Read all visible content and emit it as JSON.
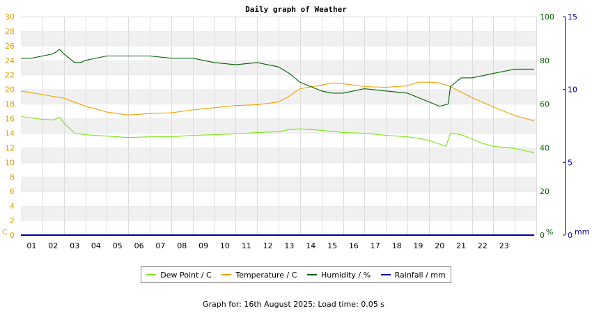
{
  "chart_data": {
    "type": "line",
    "title": "Daily graph of Weather",
    "x_ticks": [
      "01",
      "02",
      "03",
      "04",
      "05",
      "06",
      "07",
      "08",
      "09",
      "10",
      "11",
      "12",
      "13",
      "14",
      "15",
      "16",
      "17",
      "18",
      "19",
      "20",
      "21",
      "22",
      "23"
    ],
    "xlim": [
      0,
      24
    ],
    "y_left": {
      "unit_label": "C",
      "ylim": [
        0,
        30
      ],
      "ticks": [
        "0",
        "2",
        "4",
        "6",
        "8",
        "10",
        "12",
        "14",
        "16",
        "18",
        "20",
        "22",
        "24",
        "26",
        "28",
        "30"
      ]
    },
    "y_right1": {
      "unit_label": "%",
      "ylim": [
        0,
        100
      ],
      "ticks": [
        "0",
        "20",
        "40",
        "60",
        "80",
        "100"
      ]
    },
    "y_right2": {
      "unit_label": "mm",
      "ylim": [
        0,
        15
      ],
      "ticks": [
        "0",
        "5",
        "10",
        "15"
      ]
    },
    "series": [
      {
        "name": "Dew Point / C",
        "axis": "left",
        "color": "#7fe01a",
        "x": [
          0,
          0.5,
          1,
          1.5,
          1.8,
          2,
          2.5,
          3,
          4,
          5,
          6,
          7,
          8,
          9,
          10,
          11,
          12,
          12.5,
          13,
          14,
          15,
          16,
          17,
          18,
          18.5,
          19,
          19.8,
          20,
          20.5,
          21,
          21.5,
          22,
          23,
          23.9
        ],
        "y": [
          16.3,
          16.1,
          15.9,
          15.8,
          16.2,
          15.4,
          14,
          13.8,
          13.6,
          13.4,
          13.5,
          13.5,
          13.7,
          13.8,
          13.9,
          14.1,
          14.2,
          14.5,
          14.6,
          14.4,
          14.1,
          14,
          13.7,
          13.5,
          13.3,
          13,
          12.2,
          14,
          13.8,
          13.2,
          12.6,
          12.2,
          11.9,
          11.3
        ]
      },
      {
        "name": "Temperature / C",
        "axis": "left",
        "color": "#f0a000",
        "x": [
          0,
          1,
          2,
          3,
          4,
          5,
          6,
          7,
          8,
          9,
          10,
          11,
          12,
          12.5,
          13,
          14,
          14.5,
          15,
          16,
          17,
          18,
          18.5,
          19,
          19.5,
          20,
          21,
          22,
          23,
          23.9
        ],
        "y": [
          19.8,
          19.3,
          18.8,
          17.7,
          16.9,
          16.5,
          16.7,
          16.8,
          17.2,
          17.5,
          17.8,
          17.9,
          18.3,
          19.1,
          20.1,
          20.6,
          20.9,
          20.8,
          20.4,
          20.3,
          20.5,
          21,
          21,
          20.9,
          20.4,
          18.9,
          17.6,
          16.4,
          15.7
        ]
      },
      {
        "name": "Humidity / %",
        "axis": "right1",
        "color": "#006000",
        "x": [
          0,
          0.5,
          1,
          1.5,
          1.8,
          2,
          2.5,
          2.8,
          3,
          4,
          5,
          6,
          7,
          8,
          9,
          10,
          11,
          12,
          12.5,
          13,
          13.5,
          14,
          14.5,
          15,
          16,
          17,
          18,
          18.5,
          19,
          19.5,
          19.9,
          20,
          20.5,
          21,
          21.5,
          22,
          22.5,
          23,
          23.9
        ],
        "y": [
          81,
          81,
          82,
          83,
          85,
          83,
          79,
          79,
          80,
          82,
          82,
          82,
          81,
          81,
          79,
          78,
          79,
          77,
          74,
          70,
          68,
          66,
          65,
          65,
          67,
          66,
          65,
          63,
          61,
          59,
          60,
          68,
          72,
          72,
          73,
          74,
          75,
          76,
          76
        ]
      },
      {
        "name": "Rainfall / mm",
        "axis": "right2",
        "color": "#0000a0",
        "x": [
          0,
          23.9
        ],
        "y": [
          0,
          0
        ]
      }
    ],
    "grid": true,
    "legend_position": "bottom"
  },
  "footer": "Graph for: 16th August 2025; Load time: 0.05 s"
}
